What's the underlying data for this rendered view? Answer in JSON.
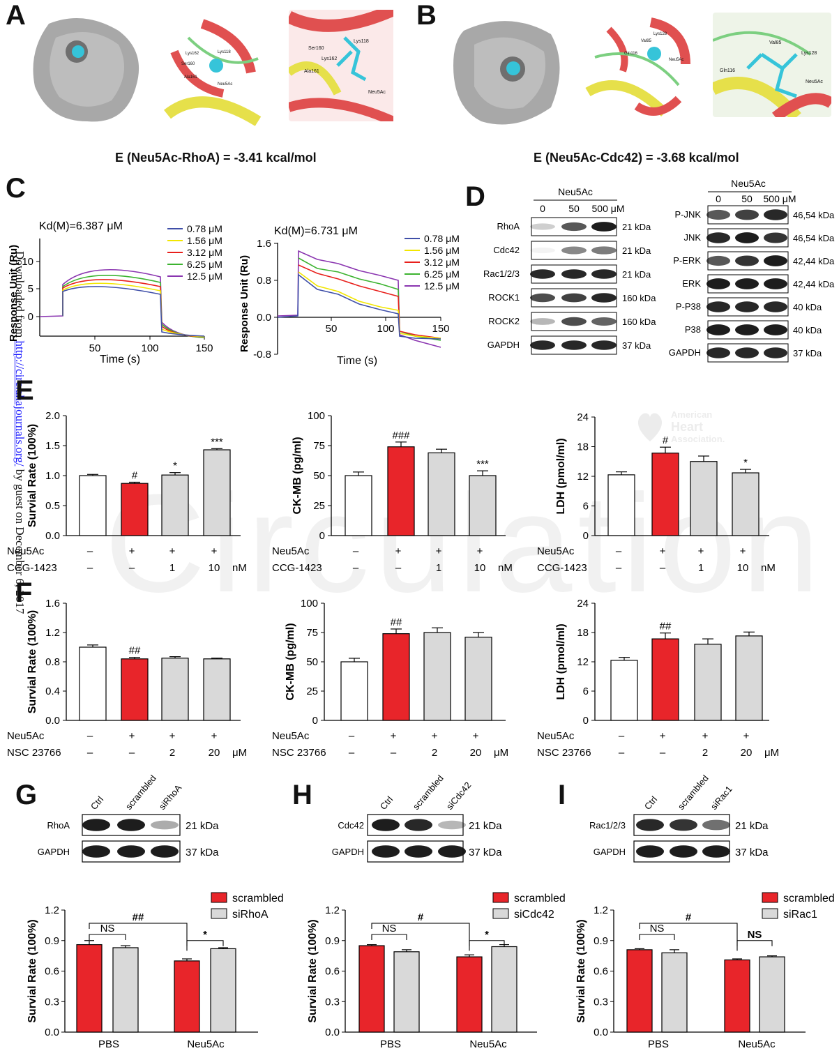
{
  "panels": {
    "A": "A",
    "B": "B",
    "C": "C",
    "D": "D",
    "E": "E",
    "F": "F",
    "G": "G",
    "H": "H",
    "I": "I"
  },
  "energies": {
    "rhoa": "E (Neu5Ac-RhoA) = -3.41 kcal/mol",
    "cdc42": "E (Neu5Ac-Cdc42) = -3.68 kcal/mol"
  },
  "docking_labels": {
    "A2": [
      "Lys162",
      "Lys118",
      "Ser160",
      "Ala161",
      "Neu5Ac"
    ],
    "A3": [
      "Ser160",
      "Lys118",
      "Lys162",
      "Ala161",
      "Neu5Ac"
    ],
    "B2": [
      "Lys128",
      "Val85",
      "Gln116",
      "Neu5Ac"
    ],
    "B3": [
      "Val85",
      "Lys128",
      "Gln116",
      "Neu5Ac"
    ]
  },
  "watermark": {
    "circulation": "Circulation",
    "aha1": "American",
    "aha2": "Heart",
    "aha3": "Association."
  },
  "side_text": {
    "pre": "Downloaded from ",
    "link": "http://circ.ahajournals.org/",
    "post": " by guest on December 6, 2017"
  },
  "spr": [
    {
      "kd": "Kd(M)=6.387 μM",
      "ylabel": "Response Unit (Ru)",
      "xlabel": "Time (s)",
      "xticks": [
        "50",
        "100",
        "150"
      ],
      "yticks": [
        "0",
        "5",
        "10"
      ],
      "legend": [
        "0.78 μM",
        "1.56 μM",
        "3.12 μM",
        "6.25 μM",
        "12.5 μM"
      ]
    },
    {
      "kd": "Kd(M)=6.731 μM",
      "ylabel": "Response Unit (Ru)",
      "xlabel": "Time (s)",
      "xticks": [
        "50",
        "100",
        "150"
      ],
      "yticks": [
        "-0.8",
        "0.0",
        "0.8",
        "1.6"
      ],
      "legend": [
        "0.78 μM",
        "1.56 μM",
        "3.12 μM",
        "6.25 μM",
        "12.5 μM"
      ]
    }
  ],
  "colors": {
    "c078": "#3f4fa8",
    "c156": "#f2e600",
    "c312": "#e8201c",
    "c625": "#3cb330",
    "c125": "#8a35b0",
    "red": "#e8252a",
    "gray": "#d9d9d9",
    "white": "#ffffff"
  },
  "blot_D": {
    "left": {
      "header": "Neu5Ac",
      "doses": [
        "0",
        "50",
        "500 μM"
      ],
      "rows": [
        {
          "name": "RhoA",
          "kda": "21 kDa"
        },
        {
          "name": "Cdc42",
          "kda": "21 kDa"
        },
        {
          "name": "Rac1/2/3",
          "kda": "21 kDa"
        },
        {
          "name": "ROCK1",
          "kda": "160 kDa"
        },
        {
          "name": "ROCK2",
          "kda": "160 kDa"
        },
        {
          "name": "GAPDH",
          "kda": "37 kDa"
        }
      ]
    },
    "right": {
      "header": "Neu5Ac",
      "doses": [
        "0",
        "50",
        "500 μM"
      ],
      "rows": [
        {
          "name": "P-JNK",
          "kda": "46,54 kDa"
        },
        {
          "name": "JNK",
          "kda": "46,54 kDa"
        },
        {
          "name": "P-ERK",
          "kda": "42,44 kDa"
        },
        {
          "name": "ERK",
          "kda": "42,44 kDa"
        },
        {
          "name": "P-P38",
          "kda": "40 kDa"
        },
        {
          "name": "P38",
          "kda": "40 kDa"
        },
        {
          "name": "GAPDH",
          "kda": "37 kDa"
        }
      ]
    }
  },
  "chart_data": [
    {
      "type": "bar",
      "panel": "E",
      "ylabel": "Survial Rate (100%)",
      "ylim": [
        0,
        2.0
      ],
      "yticks": [
        "0.0",
        "0.5",
        "1.0",
        "1.5",
        "2.0"
      ],
      "values": [
        1.0,
        0.87,
        1.01,
        1.43
      ],
      "errors": [
        0.02,
        0.02,
        0.04,
        0.02
      ],
      "sig": [
        "",
        "#",
        "*",
        "***"
      ],
      "row1": {
        "label": "Neu5Ac",
        "marks": [
          "–",
          "+",
          "+",
          "+"
        ]
      },
      "row2": {
        "label": "CCG-1423",
        "marks": [
          "–",
          "–",
          "1",
          "10"
        ],
        "unit": "nM"
      }
    },
    {
      "type": "bar",
      "panel": "E",
      "ylabel": "CK-MB (pg/ml)",
      "ylim": [
        0,
        100
      ],
      "yticks": [
        "0",
        "25",
        "50",
        "75",
        "100"
      ],
      "values": [
        50,
        74,
        69,
        50
      ],
      "errors": [
        3,
        4,
        3,
        4
      ],
      "sig": [
        "",
        "###",
        "",
        "***"
      ],
      "row1": {
        "label": "Neu5Ac",
        "marks": [
          "–",
          "+",
          "+",
          "+"
        ]
      },
      "row2": {
        "label": "CCG-1423",
        "marks": [
          "–",
          "–",
          "1",
          "10"
        ],
        "unit": "nM"
      }
    },
    {
      "type": "bar",
      "panel": "E",
      "ylabel": "LDH (pmol/ml)",
      "ylim": [
        0,
        24
      ],
      "yticks": [
        "0",
        "6",
        "12",
        "18",
        "24"
      ],
      "values": [
        12.3,
        16.7,
        15.0,
        12.7
      ],
      "errors": [
        0.6,
        1.2,
        1.1,
        0.7
      ],
      "sig": [
        "",
        "#",
        "",
        "*"
      ],
      "row1": {
        "label": "Neu5Ac",
        "marks": [
          "–",
          "+",
          "+",
          "+"
        ]
      },
      "row2": {
        "label": "CCG-1423",
        "marks": [
          "–",
          "–",
          "1",
          "10"
        ],
        "unit": "nM"
      }
    },
    {
      "type": "bar",
      "panel": "F",
      "ylabel": "Survial Rate (100%)",
      "ylim": [
        0,
        1.6
      ],
      "yticks": [
        "0.0",
        "0.4",
        "0.8",
        "1.2",
        "1.6"
      ],
      "values": [
        1.0,
        0.84,
        0.85,
        0.84
      ],
      "errors": [
        0.03,
        0.02,
        0.02,
        0.01
      ],
      "sig": [
        "",
        "##",
        "",
        ""
      ],
      "row1": {
        "label": "Neu5Ac",
        "marks": [
          "–",
          "+",
          "+",
          "+"
        ]
      },
      "row2": {
        "label": "NSC 23766",
        "marks": [
          "–",
          "–",
          "2",
          "20"
        ],
        "unit": "μM"
      }
    },
    {
      "type": "bar",
      "panel": "F",
      "ylabel": "CK-MB (pg/ml)",
      "ylim": [
        0,
        100
      ],
      "yticks": [
        "0",
        "25",
        "50",
        "75",
        "100"
      ],
      "values": [
        50,
        74,
        75,
        71
      ],
      "errors": [
        3,
        4,
        4,
        4
      ],
      "sig": [
        "",
        "##",
        "",
        ""
      ],
      "row1": {
        "label": "Neu5Ac",
        "marks": [
          "–",
          "+",
          "+",
          "+"
        ]
      },
      "row2": {
        "label": "NSC 23766",
        "marks": [
          "–",
          "–",
          "2",
          "20"
        ],
        "unit": "μM"
      }
    },
    {
      "type": "bar",
      "panel": "F",
      "ylabel": "LDH (pmol/ml)",
      "ylim": [
        0,
        24
      ],
      "yticks": [
        "0",
        "6",
        "12",
        "18",
        "24"
      ],
      "values": [
        12.3,
        16.7,
        15.6,
        17.3
      ],
      "errors": [
        0.6,
        1.2,
        1.1,
        0.8
      ],
      "sig": [
        "",
        "##",
        "",
        ""
      ],
      "row1": {
        "label": "Neu5Ac",
        "marks": [
          "–",
          "+",
          "+",
          "+"
        ]
      },
      "row2": {
        "label": "NSC 23766",
        "marks": [
          "–",
          "–",
          "2",
          "20"
        ],
        "unit": "μM"
      }
    },
    {
      "type": "bar",
      "panel": "G",
      "ylabel": "Survial Rate (100%)",
      "ylim": [
        0,
        1.2
      ],
      "yticks": [
        "0.0",
        "0.3",
        "0.6",
        "0.9",
        "1.2"
      ],
      "categories": [
        "PBS",
        "Neu5Ac"
      ],
      "legend": [
        "scrambled",
        "siRhoA"
      ],
      "series": [
        {
          "name": "scrambled",
          "values": [
            0.86,
            0.7
          ],
          "errors": [
            0.04,
            0.02
          ]
        },
        {
          "name": "siRhoA",
          "values": [
            0.83,
            0.82
          ],
          "errors": [
            0.02,
            0.01
          ]
        }
      ],
      "brackets": {
        "top": "##",
        "left": "NS",
        "right": "*"
      }
    },
    {
      "type": "bar",
      "panel": "H",
      "ylabel": "Survial Rate (100%)",
      "ylim": [
        0,
        1.2
      ],
      "yticks": [
        "0.0",
        "0.3",
        "0.6",
        "0.9",
        "1.2"
      ],
      "categories": [
        "PBS",
        "Neu5Ac"
      ],
      "legend": [
        "scrambled",
        "siCdc42"
      ],
      "series": [
        {
          "name": "scrambled",
          "values": [
            0.85,
            0.74
          ],
          "errors": [
            0.01,
            0.02
          ]
        },
        {
          "name": "siCdc42",
          "values": [
            0.79,
            0.84
          ],
          "errors": [
            0.02,
            0.02
          ]
        }
      ],
      "brackets": {
        "top": "#",
        "left": "NS",
        "right": "*"
      }
    },
    {
      "type": "bar",
      "panel": "I",
      "ylabel": "Survial Rate (100%)",
      "ylim": [
        0,
        1.2
      ],
      "yticks": [
        "0.0",
        "0.3",
        "0.6",
        "0.9",
        "1.2"
      ],
      "categories": [
        "PBS",
        "Neu5Ac"
      ],
      "legend": [
        "scrambled",
        "siRac1"
      ],
      "series": [
        {
          "name": "scrambled",
          "values": [
            0.81,
            0.71
          ],
          "errors": [
            0.01,
            0.01
          ]
        },
        {
          "name": "siRac1",
          "values": [
            0.78,
            0.74
          ],
          "errors": [
            0.03,
            0.01
          ]
        }
      ],
      "brackets": {
        "top": "#",
        "left": "NS",
        "right": "NS"
      }
    }
  ],
  "blot_GHI": [
    {
      "panel": "G",
      "lanes": [
        "Ctrl",
        "scrambled",
        "siRhoA"
      ],
      "rows": [
        {
          "name": "RhoA",
          "kda": "21 kDa"
        },
        {
          "name": "GAPDH",
          "kda": "37 kDa"
        }
      ]
    },
    {
      "panel": "H",
      "lanes": [
        "Ctrl",
        "scrambled",
        "siCdc42"
      ],
      "rows": [
        {
          "name": "Cdc42",
          "kda": "21 kDa"
        },
        {
          "name": "GAPDH",
          "kda": "37 kDa"
        }
      ]
    },
    {
      "panel": "I",
      "lanes": [
        "Ctrl",
        "scrambled",
        "siRac1"
      ],
      "rows": [
        {
          "name": "Rac1/2/3",
          "kda": "21 kDa"
        },
        {
          "name": "GAPDH",
          "kda": "37 kDa"
        }
      ]
    }
  ]
}
